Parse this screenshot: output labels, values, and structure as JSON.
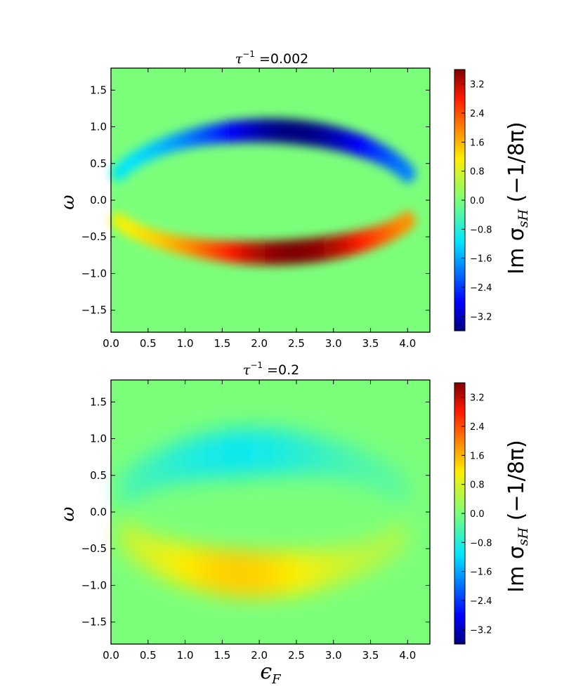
{
  "chart_data": [
    {
      "type": "heatmap",
      "title": "τ⁻¹ =0.002",
      "title_symbol": "τ",
      "title_exponent": "−1",
      "title_value": " =0.002",
      "xlabel": "",
      "ylabel": "ω",
      "xlim": [
        0.0,
        4.3
      ],
      "ylim": [
        -1.8,
        1.8
      ],
      "xticks": [
        "0.0",
        "0.5",
        "1.0",
        "1.5",
        "2.0",
        "2.5",
        "3.0",
        "3.5",
        "4.0"
      ],
      "yticks": [
        "1.5",
        "1.0",
        "0.5",
        "0.0",
        "−0.5",
        "−1.0",
        "−1.5"
      ],
      "colorbar_label": "Im σ_sH (−1/8π)",
      "colorbar_label_main": "Im σ",
      "colorbar_label_sub": "sH",
      "colorbar_label_tail": " (−1/8π)",
      "colorbar_range": [
        -3.6,
        3.6
      ],
      "colorbar_ticks": [
        "3.2",
        "2.4",
        "1.6",
        "0.8",
        "0.0",
        "−0.8",
        "−1.6",
        "−2.4",
        "−3.2"
      ],
      "features": [
        {
          "sign": "negative",
          "peak_value": -3.6,
          "arc": "upper",
          "x_range": [
            0.1,
            4.0
          ],
          "omega_at_center": 0.95
        },
        {
          "sign": "positive",
          "peak_value": 3.6,
          "arc": "lower",
          "x_range": [
            0.1,
            4.0
          ],
          "omega_at_center": -0.72
        }
      ]
    },
    {
      "type": "heatmap",
      "title": "τ⁻¹ =0.2",
      "title_symbol": "τ",
      "title_exponent": "−1",
      "title_value": " =0.2",
      "xlabel": "ϵ_F",
      "xlabel_main": "ϵ",
      "xlabel_sub": "F",
      "ylabel": "ω",
      "xlim": [
        0.0,
        4.3
      ],
      "ylim": [
        -1.8,
        1.8
      ],
      "xticks": [
        "0.0",
        "0.5",
        "1.0",
        "1.5",
        "2.0",
        "2.5",
        "3.0",
        "3.5",
        "4.0"
      ],
      "yticks": [
        "1.5",
        "1.0",
        "0.5",
        "0.0",
        "−0.5",
        "−1.0",
        "−1.5"
      ],
      "colorbar_label": "Im σ_sH (−1/8π)",
      "colorbar_label_main": "Im σ",
      "colorbar_label_sub": "sH",
      "colorbar_label_tail": " (−1/8π)",
      "colorbar_range": [
        -3.6,
        3.6
      ],
      "colorbar_ticks": [
        "3.2",
        "2.4",
        "1.6",
        "0.8",
        "0.0",
        "−0.8",
        "−1.6",
        "−2.4",
        "−3.2"
      ],
      "features": [
        {
          "sign": "negative",
          "peak_value": -1.0,
          "arc": "upper",
          "x_range": [
            0.2,
            3.9
          ],
          "omega_at_center": 0.82
        },
        {
          "sign": "positive",
          "peak_value": 1.4,
          "arc": "lower",
          "x_range": [
            0.2,
            3.9
          ],
          "omega_at_center": -0.85
        }
      ]
    }
  ]
}
